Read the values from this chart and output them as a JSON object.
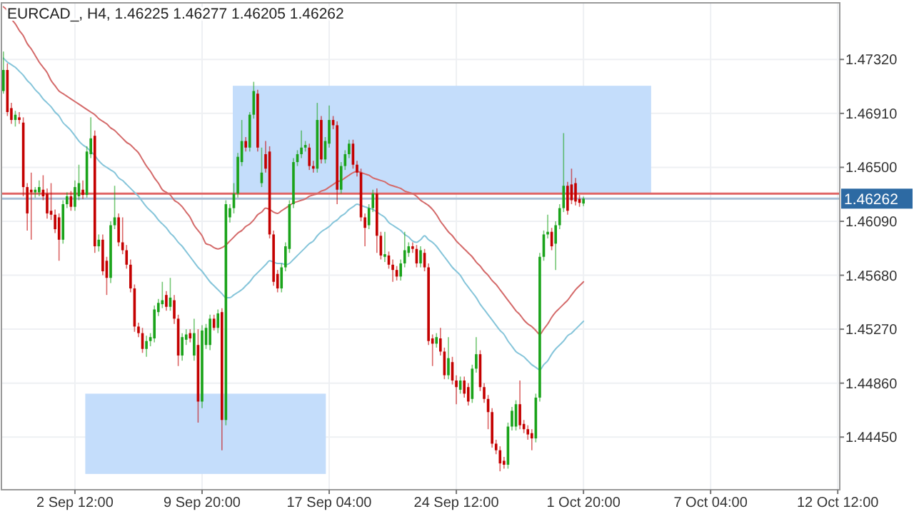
{
  "chart_data": {
    "type": "candlestick",
    "title": "EURCAD_, H4, 1.46225 1.46277 1.46205 1.46262",
    "categories": [
      null,
      null,
      null,
      null,
      null,
      null,
      null,
      null,
      null,
      null,
      null,
      null,
      null,
      null,
      null,
      null,
      null,
      null,
      "2 Sep 12:00",
      null,
      null,
      null,
      null,
      null,
      null,
      null,
      null,
      null,
      null,
      null,
      null,
      null,
      null,
      null,
      null,
      null,
      null,
      null,
      null,
      null,
      null,
      null,
      null,
      null,
      null,
      null,
      null,
      null,
      null,
      null,
      "9 Sep 20:00",
      null,
      null,
      null,
      null,
      null,
      null,
      null,
      null,
      null,
      null,
      null,
      null,
      null,
      null,
      null,
      null,
      null,
      null,
      null,
      null,
      null,
      null,
      null,
      null,
      null,
      null,
      null,
      null,
      null,
      null,
      null,
      "17 Sep 04:00",
      null,
      null,
      null,
      null,
      null,
      null,
      null,
      null,
      null,
      null,
      null,
      null,
      null,
      null,
      null,
      null,
      null,
      null,
      null,
      null,
      null,
      null,
      null,
      null,
      null,
      null,
      null,
      null,
      null,
      null,
      null,
      "24 Sep 12:00",
      null,
      null,
      null,
      null,
      null,
      null,
      null,
      null,
      null,
      null,
      null,
      null,
      null,
      null,
      null,
      null,
      null,
      null,
      null,
      null,
      null,
      null,
      null,
      null,
      null,
      null,
      null,
      null,
      null,
      null,
      null,
      "1 Oct 20:00",
      null,
      null,
      null,
      null,
      null,
      null,
      null,
      null,
      null,
      null,
      null,
      null,
      null,
      null,
      null,
      null,
      null,
      null,
      null,
      null,
      null,
      null,
      null,
      null,
      null,
      null,
      null,
      null,
      null,
      null,
      null,
      "7 Oct 04:00",
      null,
      null,
      null,
      null,
      null,
      null,
      null,
      null,
      null,
      null,
      null,
      null,
      null,
      null,
      null,
      null,
      null,
      null,
      null,
      null,
      null,
      null,
      null,
      null,
      null,
      null,
      null,
      null,
      null,
      null,
      null,
      "12 Oct 12:00"
    ],
    "ohlc": [
      [
        1.4708,
        1.4738,
        1.4706,
        1.4724
      ],
      [
        1.4724,
        1.4729,
        1.4689,
        1.4692
      ],
      [
        1.4695,
        1.4699,
        1.4683,
        1.4686
      ],
      [
        1.4686,
        1.4693,
        1.4681,
        1.469
      ],
      [
        1.4688,
        1.4692,
        1.4683,
        1.4686
      ],
      [
        1.4684,
        1.4688,
        1.4628,
        1.4635
      ],
      [
        1.4635,
        1.4638,
        1.4602,
        1.4615
      ],
      [
        1.4633,
        1.4646,
        1.4595,
        1.4631
      ],
      [
        1.4631,
        1.4635,
        1.4627,
        1.4633
      ],
      [
        1.4631,
        1.464,
        1.4628,
        1.4635
      ],
      [
        1.4633,
        1.4644,
        1.4625,
        1.4628
      ],
      [
        1.463,
        1.4634,
        1.4611,
        1.4615
      ],
      [
        1.4617,
        1.4638,
        1.461,
        1.4614
      ],
      [
        1.4614,
        1.4618,
        1.46,
        1.4603
      ],
      [
        1.4612,
        1.4615,
        1.4579,
        1.4595
      ],
      [
        1.4595,
        1.4625,
        1.4592,
        1.4622
      ],
      [
        1.4622,
        1.4631,
        1.4619,
        1.4628
      ],
      [
        1.4628,
        1.4632,
        1.4617,
        1.462
      ],
      [
        1.462,
        1.464,
        1.4617,
        1.4635
      ],
      [
        1.4628,
        1.4652,
        1.4625,
        1.4638
      ],
      [
        1.4633,
        1.464,
        1.4626,
        1.4629
      ],
      [
        1.4629,
        1.4666,
        1.4627,
        1.4662
      ],
      [
        1.466,
        1.4688,
        1.4657,
        1.4672
      ],
      [
        1.4674,
        1.4678,
        1.4585,
        1.459
      ],
      [
        1.459,
        1.4599,
        1.4586,
        1.4595
      ],
      [
        1.4595,
        1.4599,
        1.4568,
        1.4571
      ],
      [
        1.4579,
        1.4582,
        1.4553,
        1.4566
      ],
      [
        1.4566,
        1.4609,
        1.4562,
        1.4606
      ],
      [
        1.4606,
        1.4636,
        1.4603,
        1.4612
      ],
      [
        1.4612,
        1.4615,
        1.459,
        1.4593
      ],
      [
        1.4593,
        1.4612,
        1.4584,
        1.4587
      ],
      [
        1.4587,
        1.4591,
        1.4573,
        1.4576
      ],
      [
        1.4576,
        1.458,
        1.4555,
        1.4558
      ],
      [
        1.4558,
        1.4561,
        1.4525,
        1.4529
      ],
      [
        1.4529,
        1.4532,
        1.4521,
        1.4524
      ],
      [
        1.4524,
        1.4528,
        1.4509,
        1.4512
      ],
      [
        1.4512,
        1.4522,
        1.4506,
        1.4518
      ],
      [
        1.4518,
        1.4524,
        1.4514,
        1.4521
      ],
      [
        1.452,
        1.4545,
        1.4517,
        1.4542
      ],
      [
        1.454,
        1.455,
        1.4537,
        1.4547
      ],
      [
        1.4546,
        1.4563,
        1.4543,
        1.4549
      ],
      [
        1.4553,
        1.4556,
        1.4541,
        1.4544
      ],
      [
        1.4544,
        1.4566,
        1.4541,
        1.4551
      ],
      [
        1.4549,
        1.4553,
        1.4531,
        1.4535
      ],
      [
        1.4535,
        1.4538,
        1.4499,
        1.4507
      ],
      [
        1.4507,
        1.4524,
        1.4503,
        1.4521
      ],
      [
        1.4519,
        1.4527,
        1.4515,
        1.4523
      ],
      [
        1.4524,
        1.4527,
        1.4517,
        1.452
      ],
      [
        1.4507,
        1.4535,
        1.4503,
        1.4524
      ],
      [
        1.4515,
        1.4527,
        1.4456,
        1.4472
      ],
      [
        1.4472,
        1.453,
        1.4467,
        1.4526
      ],
      [
        1.4515,
        1.4531,
        1.4512,
        1.4528
      ],
      [
        1.4515,
        1.4538,
        1.4511,
        1.4535
      ],
      [
        1.4535,
        1.4538,
        1.4526,
        1.4528
      ],
      [
        1.4528,
        1.4542,
        1.4524,
        1.4539
      ],
      [
        1.454,
        1.4543,
        1.4435,
        1.4458
      ],
      [
        1.4458,
        1.4625,
        1.4454,
        1.4622
      ],
      [
        1.4612,
        1.4622,
        1.4608,
        1.4619
      ],
      [
        1.4619,
        1.4638,
        1.4615,
        1.463
      ],
      [
        1.463,
        1.4661,
        1.4627,
        1.4658
      ],
      [
        1.4654,
        1.4686,
        1.4651,
        1.467
      ],
      [
        1.467,
        1.4673,
        1.4662,
        1.4665
      ],
      [
        1.4665,
        1.4692,
        1.4662,
        1.469
      ],
      [
        1.469,
        1.4715,
        1.4687,
        1.4708
      ],
      [
        1.4706,
        1.4709,
        1.4662,
        1.4665
      ],
      [
        1.4638,
        1.4665,
        1.4635,
        1.4646
      ],
      [
        1.466,
        1.467,
        1.4646,
        1.4649
      ],
      [
        1.4662,
        1.4666,
        1.4596,
        1.4599
      ],
      [
        1.4599,
        1.4602,
        1.456,
        1.4563
      ],
      [
        1.4569,
        1.4572,
        1.4555,
        1.4558
      ],
      [
        1.4558,
        1.4577,
        1.4555,
        1.4574
      ],
      [
        1.4574,
        1.4593,
        1.4571,
        1.459
      ],
      [
        1.4588,
        1.4625,
        1.4585,
        1.4622
      ],
      [
        1.4622,
        1.4657,
        1.4619,
        1.4654
      ],
      [
        1.4654,
        1.4663,
        1.4651,
        1.466
      ],
      [
        1.466,
        1.4678,
        1.4657,
        1.4665
      ],
      [
        1.4665,
        1.467,
        1.4662,
        1.4667
      ],
      [
        1.4665,
        1.4668,
        1.4648,
        1.4651
      ],
      [
        1.4651,
        1.4655,
        1.4646,
        1.4649
      ],
      [
        1.4649,
        1.4699,
        1.4646,
        1.4686
      ],
      [
        1.4686,
        1.4689,
        1.4653,
        1.4656
      ],
      [
        1.4656,
        1.4673,
        1.4653,
        1.467
      ],
      [
        1.4668,
        1.4697,
        1.4665,
        1.4686
      ],
      [
        1.4686,
        1.4689,
        1.4679,
        1.4682
      ],
      [
        1.4682,
        1.4685,
        1.4622,
        1.4633
      ],
      [
        1.4633,
        1.4654,
        1.463,
        1.4651
      ],
      [
        1.4651,
        1.4663,
        1.4648,
        1.466
      ],
      [
        1.466,
        1.4671,
        1.4657,
        1.4668
      ],
      [
        1.4668,
        1.4671,
        1.4649,
        1.4652
      ],
      [
        1.4652,
        1.4655,
        1.4643,
        1.4646
      ],
      [
        1.4646,
        1.4649,
        1.4609,
        1.4612
      ],
      [
        1.4612,
        1.4615,
        1.459,
        1.4604
      ],
      [
        1.4606,
        1.4622,
        1.4603,
        1.4619
      ],
      [
        1.4619,
        1.4633,
        1.4616,
        1.463
      ],
      [
        1.463,
        1.4634,
        1.4585,
        1.4598
      ],
      [
        1.4598,
        1.4601,
        1.458,
        1.4583
      ],
      [
        1.4582,
        1.4601,
        1.4578,
        1.4584
      ],
      [
        1.4583,
        1.4586,
        1.4573,
        1.4576
      ],
      [
        1.4576,
        1.458,
        1.4563,
        1.4572
      ],
      [
        1.4572,
        1.4575,
        1.4564,
        1.4567
      ],
      [
        1.4567,
        1.458,
        1.4564,
        1.4577
      ],
      [
        1.4577,
        1.4601,
        1.4574,
        1.4587
      ],
      [
        1.4585,
        1.4593,
        1.4582,
        1.459
      ],
      [
        1.459,
        1.4593,
        1.4585,
        1.4588
      ],
      [
        1.4588,
        1.4591,
        1.4574,
        1.4577
      ],
      [
        1.4577,
        1.459,
        1.4574,
        1.4587
      ],
      [
        1.4585,
        1.4588,
        1.4571,
        1.4574
      ],
      [
        1.4574,
        1.4577,
        1.4515,
        1.4518
      ],
      [
        1.452,
        1.4523,
        1.4499,
        1.4516
      ],
      [
        1.4516,
        1.4524,
        1.4513,
        1.4521
      ],
      [
        1.452,
        1.4528,
        1.4507,
        1.451
      ],
      [
        1.451,
        1.4513,
        1.4489,
        1.4492
      ],
      [
        1.4492,
        1.4521,
        1.4489,
        1.4505
      ],
      [
        1.4502,
        1.4506,
        1.4485,
        1.4488
      ],
      [
        1.4488,
        1.4492,
        1.447,
        1.4483
      ],
      [
        1.4481,
        1.4491,
        1.4478,
        1.4488
      ],
      [
        1.4488,
        1.4491,
        1.4475,
        1.4478
      ],
      [
        1.4483,
        1.4486,
        1.4469,
        1.4472
      ],
      [
        1.4474,
        1.45,
        1.4471,
        1.4497
      ],
      [
        1.4497,
        1.4521,
        1.4494,
        1.4508
      ],
      [
        1.4508,
        1.4511,
        1.448,
        1.4483
      ],
      [
        1.4483,
        1.4486,
        1.4471,
        1.4474
      ],
      [
        1.4474,
        1.4477,
        1.4451,
        1.4464
      ],
      [
        1.4464,
        1.4467,
        1.4437,
        1.444
      ],
      [
        1.444,
        1.4443,
        1.4432,
        1.4435
      ],
      [
        1.4435,
        1.4438,
        1.4419,
        1.4425
      ],
      [
        1.4427,
        1.443,
        1.4421,
        1.4424
      ],
      [
        1.4424,
        1.4456,
        1.4421,
        1.4453
      ],
      [
        1.4453,
        1.4468,
        1.445,
        1.4465
      ],
      [
        1.4453,
        1.4473,
        1.445,
        1.447
      ],
      [
        1.447,
        1.4488,
        1.4451,
        1.4454
      ],
      [
        1.4455,
        1.4458,
        1.4448,
        1.4451
      ],
      [
        1.4451,
        1.4454,
        1.4443,
        1.4447
      ],
      [
        1.4448,
        1.4451,
        1.4435,
        1.4444
      ],
      [
        1.4444,
        1.4478,
        1.4441,
        1.4475
      ],
      [
        1.4475,
        1.4585,
        1.4472,
        1.4582
      ],
      [
        1.4582,
        1.4602,
        1.4579,
        1.4599
      ],
      [
        1.4599,
        1.4614,
        1.4596,
        1.4601
      ],
      [
        1.4601,
        1.4604,
        1.4587,
        1.459
      ],
      [
        1.4592,
        1.4609,
        1.4572,
        1.4606
      ],
      [
        1.4606,
        1.4622,
        1.4603,
        1.4619
      ],
      [
        1.4619,
        1.4676,
        1.4616,
        1.4636
      ],
      [
        1.4636,
        1.4639,
        1.4614,
        1.4617
      ],
      [
        1.4637,
        1.4649,
        1.4622,
        1.4625
      ],
      [
        1.4638,
        1.4642,
        1.4621,
        1.4624
      ],
      [
        1.4626,
        1.4629,
        1.462,
        1.4623
      ],
      [
        1.46225,
        1.46277,
        1.46205,
        1.46262
      ],
      null,
      null,
      null,
      null,
      null,
      null,
      null,
      null,
      null,
      null,
      null,
      null,
      null,
      null,
      null,
      null,
      null,
      null,
      null,
      null,
      null,
      null,
      null,
      null,
      null,
      null,
      null,
      null,
      null,
      null,
      null,
      null,
      null,
      null,
      null,
      null,
      null,
      null,
      null,
      null,
      null,
      null,
      null,
      null,
      null,
      null,
      null,
      null,
      null,
      null,
      null,
      null,
      null,
      null,
      null,
      null,
      null,
      null,
      null,
      null,
      null,
      null,
      null,
      null
    ],
    "series": [
      {
        "type": "line",
        "color": "#d46a6a",
        "values": [
          1.4772,
          1.4769,
          1.4763,
          1.4759,
          1.4754,
          1.475,
          1.4744,
          1.474,
          1.4735,
          1.473,
          1.4726,
          1.4722,
          1.4716,
          1.4712,
          1.4708,
          1.4706,
          1.4704,
          1.4702,
          1.47,
          1.4698,
          1.4696,
          1.4694,
          1.4692,
          1.469,
          1.4687,
          1.4685,
          1.4683,
          1.468,
          1.4678,
          1.4675,
          1.4672,
          1.4669,
          1.4667,
          1.4664,
          1.4661,
          1.4656,
          1.4651,
          1.4647,
          1.4642,
          1.4638,
          1.4633,
          1.4631,
          1.4629,
          1.4625,
          1.4623,
          1.462,
          1.4616,
          1.4612,
          1.4606,
          1.4602,
          1.4598,
          1.4592,
          1.4591,
          1.4589,
          1.4588,
          1.4589,
          1.4591,
          1.4594,
          1.4597,
          1.46,
          1.4602,
          1.4605,
          1.4607,
          1.461,
          1.4614,
          1.4616,
          1.4619,
          1.4618,
          1.4616,
          1.4615,
          1.4617,
          1.4619,
          1.4621,
          1.4623,
          1.4624,
          1.4625,
          1.4626,
          1.4628,
          1.4629,
          1.463,
          1.4632,
          1.4633,
          1.4635,
          1.4637,
          1.4639,
          1.464,
          1.4642,
          1.4644,
          1.4646,
          1.4647,
          1.4646,
          1.4645,
          1.4644,
          1.4642,
          1.4641,
          1.464,
          1.4639,
          1.4637,
          1.4636,
          1.4635,
          1.4634,
          1.4632,
          1.4631,
          1.463,
          1.4628,
          1.4625,
          1.4623,
          1.4621,
          1.4618,
          1.4614,
          1.4609,
          1.4605,
          1.4601,
          1.4598,
          1.4594,
          1.4591,
          1.4588,
          1.4585,
          1.4582,
          1.4578,
          1.4575,
          1.4571,
          1.4568,
          1.4564,
          1.4561,
          1.4557,
          1.4553,
          1.4549,
          1.4545,
          1.4541,
          1.4538,
          1.4534,
          1.4531,
          1.4529,
          1.4526,
          1.4523,
          1.4527,
          1.4531,
          1.4536,
          1.454,
          1.4543,
          1.4546,
          1.4549,
          1.4553,
          1.4557,
          1.456,
          1.4563,
          null,
          null,
          null,
          null,
          null,
          null,
          null,
          null,
          null,
          null,
          null,
          null,
          null,
          null,
          null,
          null,
          null,
          null,
          null,
          null,
          null,
          null,
          null,
          null,
          null,
          null,
          null,
          null,
          null,
          null,
          null,
          null,
          null,
          null,
          null,
          null,
          null,
          null,
          null,
          null,
          null,
          null,
          null,
          null,
          null,
          null,
          null,
          null,
          null,
          null,
          null,
          null,
          null,
          null,
          null,
          null,
          null,
          null,
          null,
          null,
          null,
          null,
          null,
          null
        ]
      },
      {
        "type": "line",
        "color": "#86c5da",
        "values": [
          1.4733,
          1.473,
          1.4728,
          1.4726,
          1.4723,
          1.472,
          1.4716,
          1.4713,
          1.4709,
          1.4706,
          1.4702,
          1.4699,
          1.4696,
          1.4692,
          1.4689,
          1.4684,
          1.4681,
          1.4678,
          1.4674,
          1.467,
          1.4667,
          1.4665,
          1.4662,
          1.4659,
          1.4655,
          1.4652,
          1.465,
          1.4648,
          1.4646,
          1.4642,
          1.464,
          1.4637,
          1.4634,
          1.4631,
          1.4628,
          1.4624,
          1.462,
          1.4617,
          1.4614,
          1.461,
          1.4607,
          1.4604,
          1.46,
          1.4597,
          1.4593,
          1.459,
          1.4586,
          1.4582,
          1.4578,
          1.4574,
          1.4571,
          1.4567,
          1.4563,
          1.456,
          1.4557,
          1.4554,
          1.4551,
          1.4551,
          1.4553,
          1.4555,
          1.4557,
          1.456,
          1.4563,
          1.4567,
          1.457,
          1.4573,
          1.4576,
          1.4579,
          1.4578,
          1.4577,
          1.4577,
          1.4576,
          1.4577,
          1.458,
          1.4583,
          1.4586,
          1.4589,
          1.4592,
          1.4594,
          1.4598,
          1.4601,
          1.4603,
          1.4605,
          1.4608,
          1.461,
          1.4613,
          1.4615,
          1.4618,
          1.462,
          1.4622,
          1.4621,
          1.462,
          1.4619,
          1.4618,
          1.4616,
          1.4614,
          1.4612,
          1.4608,
          1.4606,
          1.4604,
          1.4602,
          1.4599,
          1.4597,
          1.4594,
          1.4593,
          1.4595,
          1.4598,
          1.4595,
          1.4593,
          1.459,
          1.4586,
          1.4582,
          1.4578,
          1.4574,
          1.4571,
          1.4568,
          1.4563,
          1.4559,
          1.4555,
          1.4551,
          1.4546,
          1.4542,
          1.4538,
          1.4534,
          1.453,
          1.4526,
          1.4523,
          1.4518,
          1.4514,
          1.451,
          1.4508,
          1.4506,
          1.4503,
          1.45,
          1.4498,
          1.4496,
          1.45,
          1.4503,
          1.4508,
          1.4512,
          1.4515,
          1.4518,
          1.4522,
          1.4524,
          1.4527,
          1.453,
          1.4533,
          null,
          null,
          null,
          null,
          null,
          null,
          null,
          null,
          null,
          null,
          null,
          null,
          null,
          null,
          null,
          null,
          null,
          null,
          null,
          null,
          null,
          null,
          null,
          null,
          null,
          null,
          null,
          null,
          null,
          null,
          null,
          null,
          null,
          null,
          null,
          null,
          null,
          null,
          null,
          null,
          null,
          null,
          null,
          null,
          null,
          null,
          null,
          null,
          null,
          null,
          null,
          null,
          null,
          null,
          null,
          null,
          null,
          null,
          null,
          null,
          null,
          null,
          null,
          null
        ]
      }
    ],
    "ylim": [
      1.4405,
      1.4775
    ],
    "yticks": [
      {
        "value": 1.4445,
        "label": "1.44450"
      },
      {
        "value": 1.4486,
        "label": "1.44860"
      },
      {
        "value": 1.4527,
        "label": "1.45270"
      },
      {
        "value": 1.4568,
        "label": "1.45680"
      },
      {
        "value": 1.4609,
        "label": "1.46090"
      },
      {
        "value": 1.465,
        "label": "1.46500"
      },
      {
        "value": 1.4691,
        "label": "1.46910"
      },
      {
        "value": 1.4732,
        "label": "1.47320"
      }
    ],
    "grid": true,
    "ref_lines": [
      {
        "axis": "y",
        "value": 1.463,
        "color": "#e06666"
      },
      {
        "axis": "y",
        "value": 1.46262,
        "label": "1.46262",
        "color": "#a9bfd6"
      }
    ],
    "bands": [
      {
        "axis": "y",
        "from": 1.463,
        "to": 1.4712,
        "color": "#c4ddfb"
      },
      {
        "axis": "y",
        "from": 1.4417,
        "to": 1.4478,
        "color": "#c4ddfb"
      }
    ]
  }
}
